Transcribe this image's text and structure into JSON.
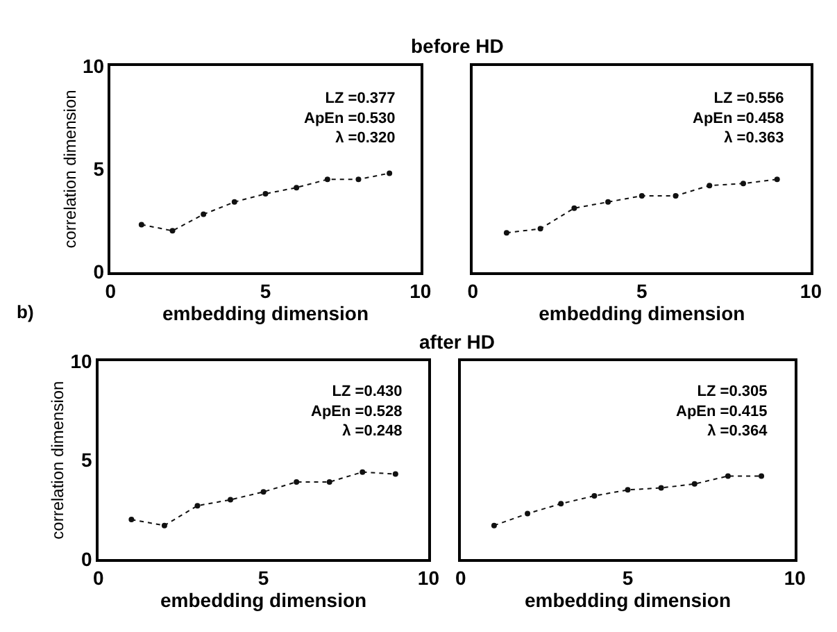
{
  "chart_data": [
    {
      "type": "line",
      "title": "before HD",
      "ylabel": "correlation dimension",
      "xlabel": "embedding dimension",
      "x": [
        1,
        2,
        3,
        4,
        5,
        6,
        7,
        8,
        9
      ],
      "values": [
        2.3,
        2.0,
        2.8,
        3.4,
        3.8,
        4.1,
        4.5,
        4.5,
        4.8
      ],
      "color": "#111111",
      "marker": "circle",
      "line_style": "dotted",
      "xlim": [
        0,
        10
      ],
      "xticks": [
        0,
        5,
        10
      ],
      "ylim": [
        0,
        10
      ],
      "yticks": [
        0,
        5,
        10
      ],
      "annotations": [
        "LZ =0.377\nApEn =0.530\nλ =0.320"
      ]
    },
    {
      "type": "line",
      "xlabel": "embedding dimension",
      "x": [
        1,
        2,
        3,
        4,
        5,
        6,
        7,
        8,
        9
      ],
      "values": [
        1.9,
        2.1,
        3.1,
        3.4,
        3.7,
        3.7,
        4.2,
        4.3,
        4.5
      ],
      "color": "#111111",
      "marker": "circle",
      "line_style": "dotted",
      "xlim": [
        0,
        10
      ],
      "xticks": [
        0,
        5,
        10
      ],
      "ylim": [
        0,
        10
      ],
      "yticks": [
        0,
        5,
        10
      ],
      "tick_labels": "x",
      "annotations": [
        "LZ =0.556\nApEn =0.458\nλ =0.363"
      ]
    },
    {
      "type": "line",
      "title": "after HD",
      "ylabel": "correlation dimension",
      "xlabel": "embedding dimension",
      "x": [
        1,
        2,
        3,
        4,
        5,
        6,
        7,
        8,
        9
      ],
      "values": [
        2.0,
        1.7,
        2.7,
        3.0,
        3.4,
        3.9,
        3.9,
        4.4,
        4.3
      ],
      "color": "#111111",
      "marker": "circle",
      "line_style": "dotted",
      "xlim": [
        0,
        10
      ],
      "xticks": [
        0,
        5,
        10
      ],
      "ylim": [
        0,
        10
      ],
      "yticks": [
        0,
        5,
        10
      ],
      "annotations": [
        "b)",
        "LZ =0.430\nApEn =0.528\nλ =0.248"
      ]
    },
    {
      "type": "line",
      "xlabel": "embedding dimension",
      "x": [
        1,
        2,
        3,
        4,
        5,
        6,
        7,
        8,
        9
      ],
      "values": [
        1.7,
        2.3,
        2.8,
        3.2,
        3.5,
        3.6,
        3.8,
        4.2,
        4.2
      ],
      "color": "#111111",
      "marker": "circle",
      "line_style": "dotted",
      "xlim": [
        0,
        10
      ],
      "xticks": [
        0,
        5,
        10
      ],
      "ylim": [
        0,
        10
      ],
      "yticks": [
        0,
        5,
        10
      ],
      "tick_labels": "x",
      "annotations": [
        "LZ =0.305\nApEn =0.415\nλ =0.364"
      ]
    }
  ]
}
